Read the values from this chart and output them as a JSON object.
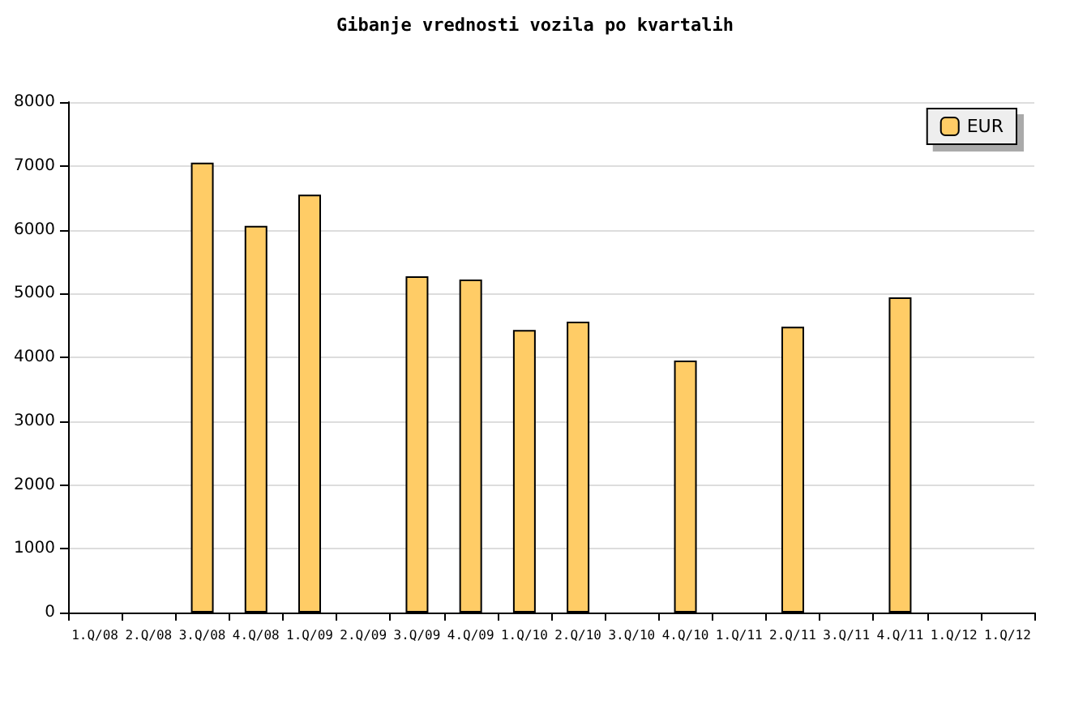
{
  "chart_data": {
    "type": "bar",
    "title": "Gibanje vrednosti vozila po kvartalih",
    "categories": [
      "1.Q/08",
      "2.Q/08",
      "3.Q/08",
      "4.Q/08",
      "1.Q/09",
      "2.Q/09",
      "3.Q/09",
      "4.Q/09",
      "1.Q/10",
      "2.Q/10",
      "3.Q/10",
      "4.Q/10",
      "1.Q/11",
      "2.Q/11",
      "3.Q/11",
      "4.Q/11",
      "1.Q/12",
      "1.Q/12"
    ],
    "series": [
      {
        "name": "EUR",
        "color": "#ffcc66",
        "values": [
          null,
          null,
          7050,
          6060,
          6550,
          null,
          5270,
          5220,
          4430,
          4560,
          null,
          3950,
          null,
          4480,
          null,
          4940,
          null,
          null
        ]
      }
    ],
    "ylim": [
      0,
      8000
    ],
    "yticks": [
      0,
      1000,
      2000,
      3000,
      4000,
      5000,
      6000,
      7000,
      8000
    ],
    "grid": "y",
    "legend": "top right"
  }
}
